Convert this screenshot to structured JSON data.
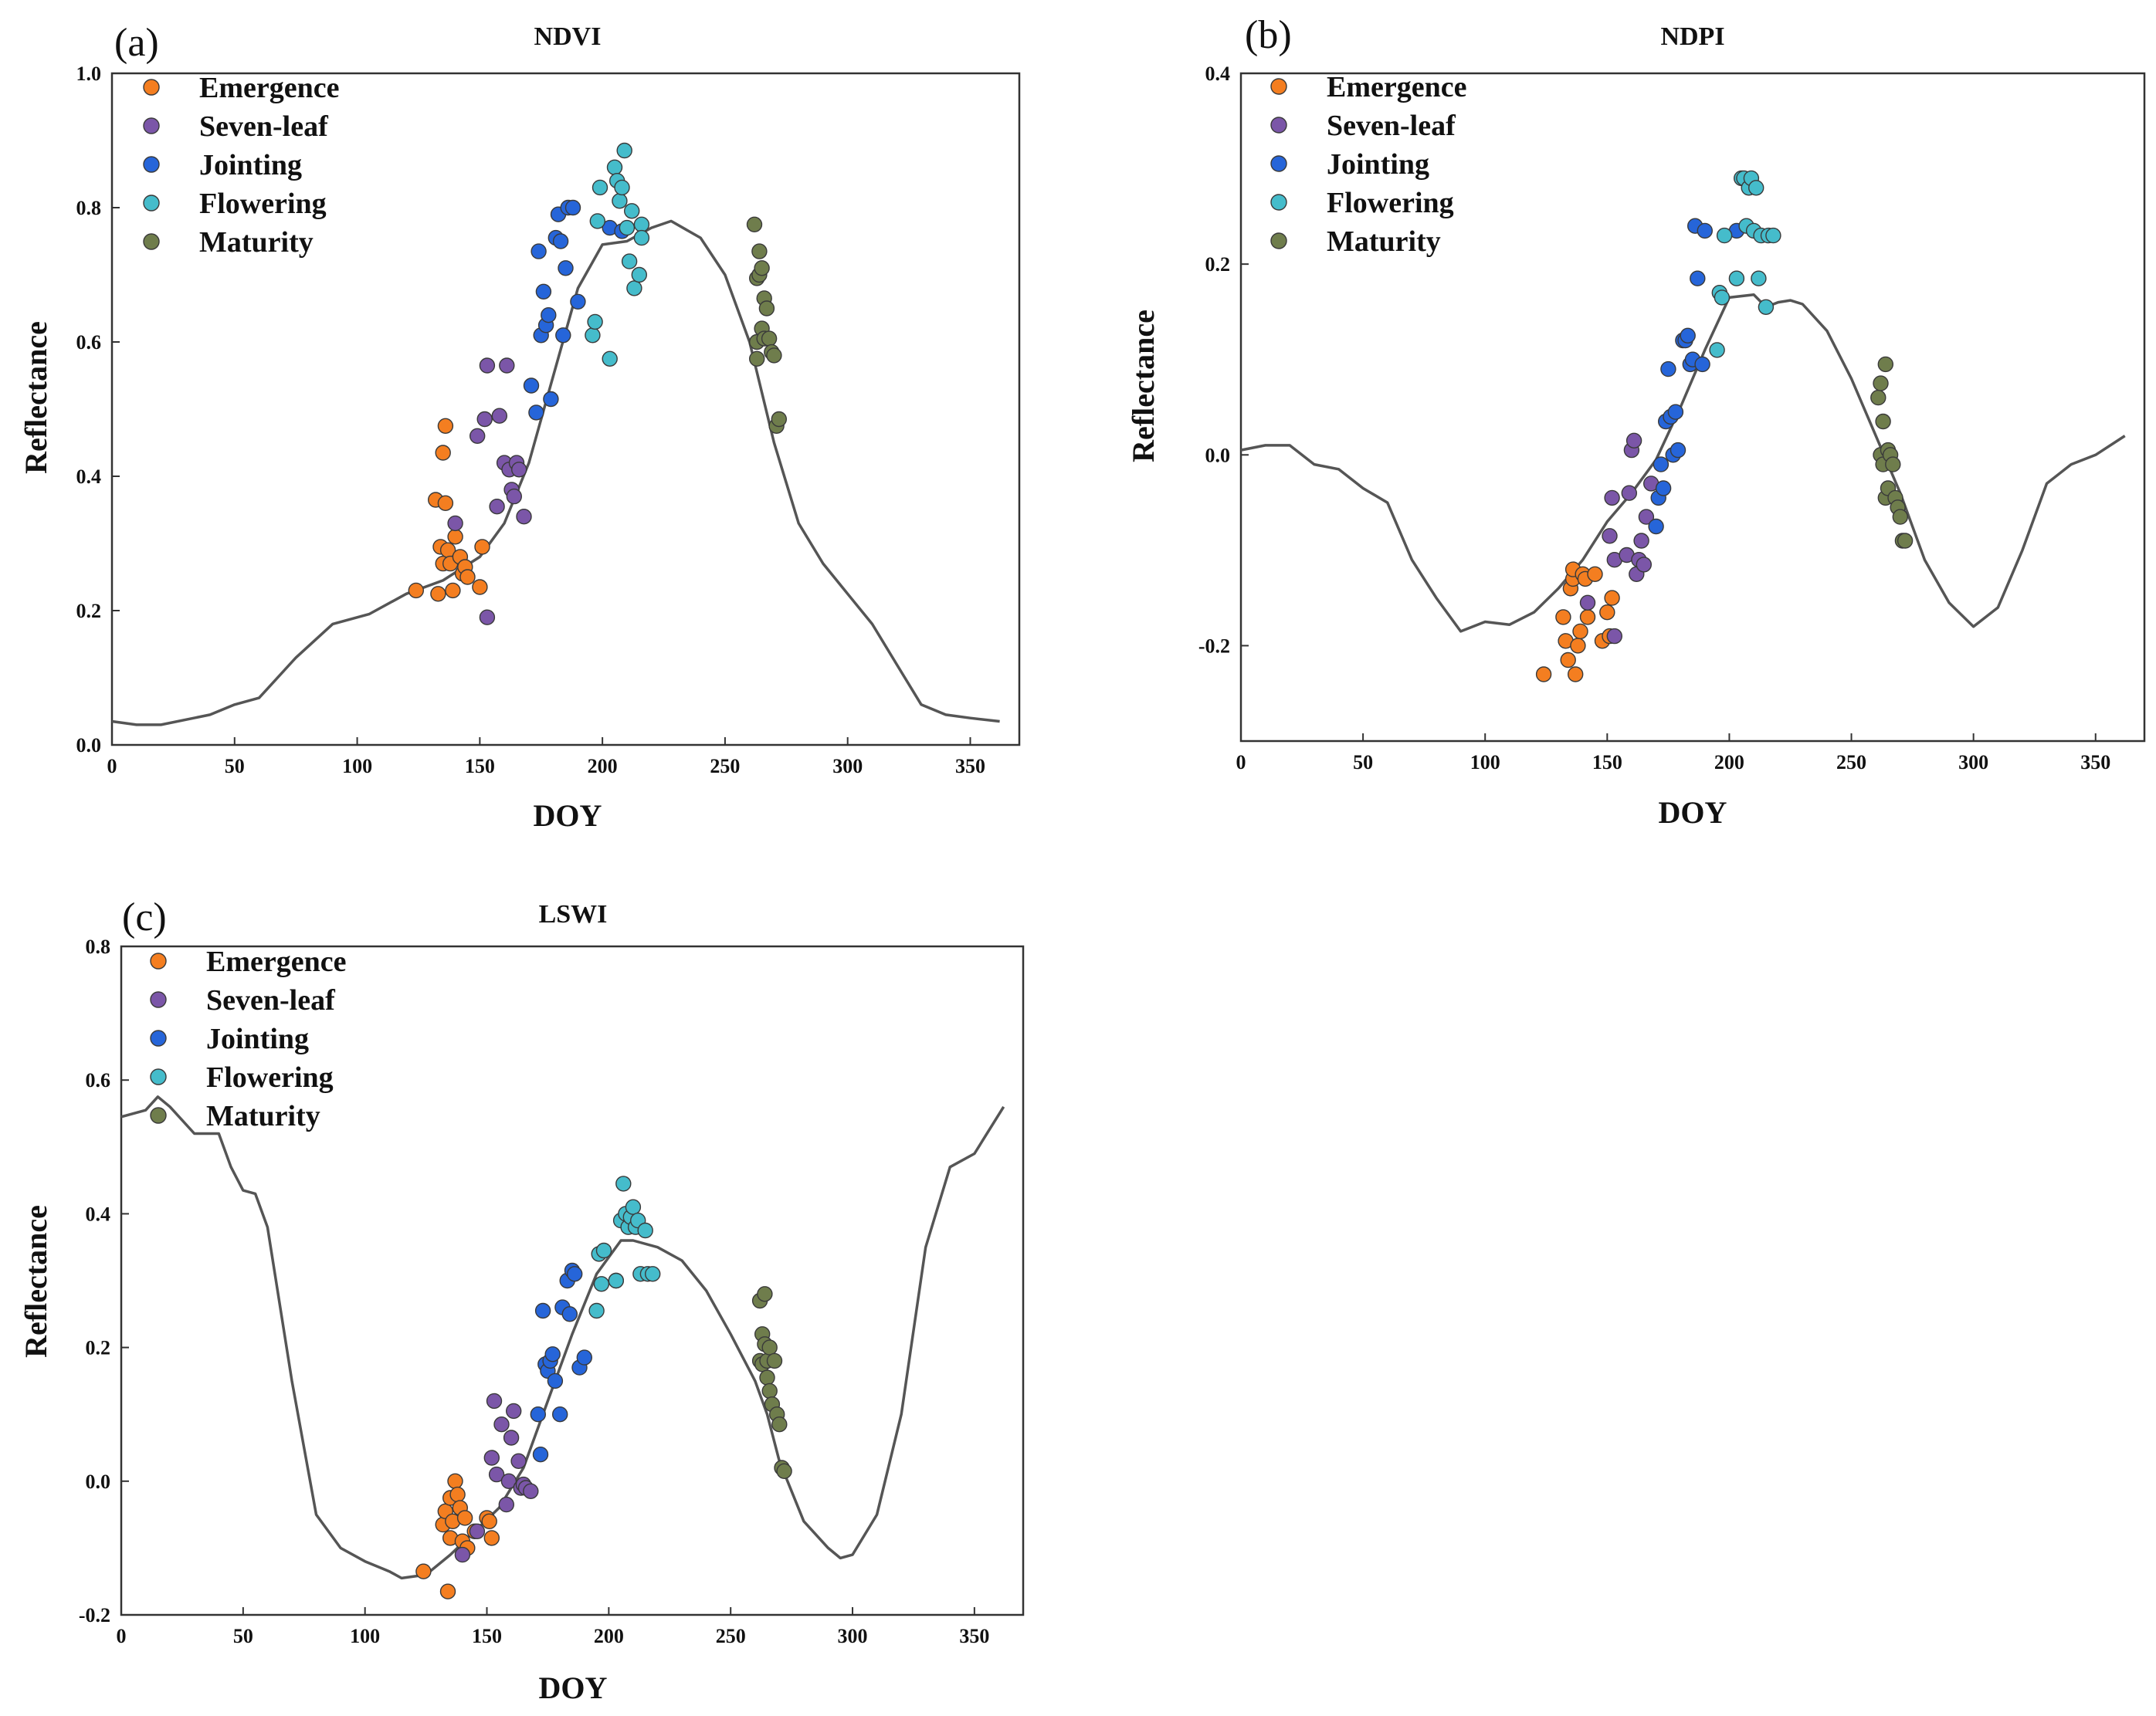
{
  "legend_labels": [
    "Emergence",
    "Seven-leaf",
    "Jointing",
    "Flowering",
    "Maturity"
  ],
  "colors": {
    "Emergence": "#f47e20",
    "Seven-leaf": "#7b56a8",
    "Jointing": "#2665d9",
    "Flowering": "#45bccb",
    "Maturity": "#6f7d4c",
    "curve": "#555555",
    "axis": "#333333"
  },
  "chart_data": [
    {
      "type": "scatter",
      "panel": "(a)",
      "title": "NDVI",
      "xlabel": "DOY",
      "ylabel": "Reflectance",
      "xlim": [
        0,
        370
      ],
      "ylim": [
        0.0,
        1.0
      ],
      "xticks": [
        0,
        50,
        100,
        150,
        200,
        250,
        300,
        350
      ],
      "yticks": [
        0.0,
        0.2,
        0.4,
        0.6,
        0.8,
        1.0
      ],
      "ytick_labels": [
        "0.0",
        "0.2",
        "0.4",
        "0.6",
        "0.8",
        "1.0"
      ],
      "legend": "top-left",
      "curve": {
        "x": [
          0,
          10,
          20,
          40,
          50,
          60,
          75,
          90,
          105,
          120,
          135,
          150,
          160,
          170,
          180,
          190,
          200,
          210,
          220,
          228,
          240,
          250,
          260,
          270,
          280,
          290,
          300,
          310,
          320,
          330,
          340,
          350,
          362
        ],
        "y": [
          0.035,
          0.03,
          0.03,
          0.045,
          0.06,
          0.07,
          0.13,
          0.18,
          0.195,
          0.225,
          0.245,
          0.28,
          0.33,
          0.42,
          0.55,
          0.68,
          0.745,
          0.75,
          0.77,
          0.78,
          0.755,
          0.7,
          0.6,
          0.45,
          0.33,
          0.27,
          0.225,
          0.18,
          0.12,
          0.06,
          0.045,
          0.04,
          0.035
        ]
      },
      "series": [
        {
          "name": "Emergence",
          "x": [
            124,
            132,
            133,
            134,
            135,
            135,
            136,
            136,
            137,
            138,
            139,
            140,
            142,
            143,
            144,
            145,
            150,
            151
          ],
          "y": [
            0.23,
            0.365,
            0.225,
            0.295,
            0.435,
            0.27,
            0.475,
            0.36,
            0.29,
            0.27,
            0.23,
            0.31,
            0.28,
            0.255,
            0.265,
            0.25,
            0.235,
            0.295
          ]
        },
        {
          "name": "Seven-leaf",
          "x": [
            140,
            149,
            152,
            153,
            153,
            157,
            158,
            160,
            161,
            162,
            163,
            164,
            165,
            166,
            168
          ],
          "y": [
            0.33,
            0.46,
            0.485,
            0.565,
            0.19,
            0.355,
            0.49,
            0.42,
            0.565,
            0.41,
            0.38,
            0.37,
            0.42,
            0.41,
            0.34
          ]
        },
        {
          "name": "Jointing",
          "x": [
            171,
            173,
            174,
            175,
            176,
            177,
            178,
            179,
            181,
            182,
            183,
            184,
            185,
            186,
            188,
            190,
            203,
            208
          ],
          "y": [
            0.535,
            0.495,
            0.735,
            0.61,
            0.675,
            0.625,
            0.64,
            0.515,
            0.755,
            0.79,
            0.75,
            0.61,
            0.71,
            0.8,
            0.8,
            0.66,
            0.77,
            0.765
          ]
        },
        {
          "name": "Flowering",
          "x": [
            196,
            197,
            198,
            199,
            203,
            205,
            206,
            207,
            208,
            209,
            210,
            211,
            212,
            213,
            215,
            216,
            216
          ],
          "y": [
            0.61,
            0.63,
            0.78,
            0.83,
            0.575,
            0.86,
            0.84,
            0.81,
            0.83,
            0.885,
            0.77,
            0.72,
            0.795,
            0.68,
            0.7,
            0.775,
            0.755
          ]
        },
        {
          "name": "Maturity",
          "x": [
            262,
            263,
            263,
            263,
            264,
            264,
            265,
            265,
            266,
            266,
            267,
            268,
            269,
            270,
            271,
            272
          ],
          "y": [
            0.775,
            0.695,
            0.6,
            0.575,
            0.735,
            0.7,
            0.71,
            0.62,
            0.665,
            0.605,
            0.65,
            0.605,
            0.585,
            0.58,
            0.475,
            0.485
          ]
        }
      ]
    },
    {
      "type": "scatter",
      "panel": "(b)",
      "title": "NDPI",
      "xlabel": "DOY",
      "ylabel": "Reflectance",
      "xlim": [
        0,
        370
      ],
      "ylim": [
        -0.3,
        0.4
      ],
      "xticks": [
        0,
        50,
        100,
        150,
        200,
        250,
        300,
        350
      ],
      "yticks": [
        -0.2,
        0.0,
        0.2,
        0.4
      ],
      "ytick_labels": [
        "-0.2",
        "0.0",
        "0.2",
        "0.4"
      ],
      "legend": "top-left",
      "curve": {
        "x": [
          0,
          10,
          20,
          30,
          40,
          50,
          60,
          70,
          80,
          90,
          100,
          110,
          120,
          130,
          140,
          150,
          160,
          170,
          180,
          190,
          200,
          210,
          215,
          220,
          225,
          230,
          240,
          250,
          260,
          270,
          280,
          290,
          300,
          310,
          320,
          330,
          340,
          350,
          362
        ],
        "y": [
          0.005,
          0.01,
          0.01,
          -0.01,
          -0.015,
          -0.035,
          -0.05,
          -0.11,
          -0.15,
          -0.185,
          -0.175,
          -0.178,
          -0.165,
          -0.14,
          -0.11,
          -0.07,
          -0.04,
          -0.005,
          0.05,
          0.11,
          0.165,
          0.168,
          0.155,
          0.16,
          0.162,
          0.158,
          0.13,
          0.08,
          0.02,
          -0.04,
          -0.11,
          -0.155,
          -0.18,
          -0.16,
          -0.1,
          -0.03,
          -0.01,
          0.0,
          0.02
        ]
      },
      "series": [
        {
          "name": "Emergence",
          "x": [
            124,
            132,
            133,
            134,
            135,
            136,
            136,
            137,
            138,
            139,
            140,
            141,
            142,
            145,
            148,
            150,
            151,
            152
          ],
          "y": [
            -0.23,
            -0.17,
            -0.195,
            -0.215,
            -0.14,
            -0.13,
            -0.12,
            -0.23,
            -0.2,
            -0.185,
            -0.125,
            -0.13,
            -0.17,
            -0.125,
            -0.195,
            -0.165,
            -0.19,
            -0.15
          ]
        },
        {
          "name": "Seven-leaf",
          "x": [
            142,
            151,
            152,
            153,
            153,
            158,
            159,
            160,
            161,
            162,
            163,
            164,
            165,
            166,
            168
          ],
          "y": [
            -0.155,
            -0.085,
            -0.045,
            -0.11,
            -0.19,
            -0.105,
            -0.04,
            0.005,
            0.015,
            -0.125,
            -0.11,
            -0.09,
            -0.115,
            -0.065,
            -0.03
          ]
        },
        {
          "name": "Jointing",
          "x": [
            170,
            171,
            172,
            173,
            174,
            175,
            176,
            177,
            178,
            179,
            181,
            182,
            183,
            184,
            185,
            186,
            187,
            189,
            190,
            203
          ],
          "y": [
            -0.075,
            -0.045,
            -0.01,
            -0.035,
            0.035,
            0.09,
            0.04,
            0.0,
            0.045,
            0.005,
            0.12,
            0.12,
            0.125,
            0.095,
            0.1,
            0.24,
            0.185,
            0.095,
            0.235,
            0.235
          ]
        },
        {
          "name": "Flowering",
          "x": [
            195,
            196,
            197,
            198,
            203,
            205,
            206,
            207,
            208,
            209,
            210,
            211,
            212,
            213,
            215,
            216,
            218
          ],
          "y": [
            0.11,
            0.17,
            0.165,
            0.23,
            0.185,
            0.29,
            0.29,
            0.24,
            0.28,
            0.29,
            0.235,
            0.28,
            0.185,
            0.23,
            0.155,
            0.23,
            0.23
          ]
        },
        {
          "name": "Maturity",
          "x": [
            261,
            262,
            262,
            263,
            263,
            264,
            264,
            265,
            265,
            266,
            267,
            268,
            269,
            270,
            271,
            272
          ],
          "y": [
            0.06,
            0.075,
            0.0,
            0.035,
            -0.01,
            0.095,
            -0.045,
            0.005,
            -0.035,
            0.0,
            -0.01,
            -0.045,
            -0.055,
            -0.065,
            -0.09,
            -0.09
          ]
        }
      ]
    },
    {
      "type": "scatter",
      "panel": "(c)",
      "title": "LSWI",
      "xlabel": "DOY",
      "ylabel": "Reflectance",
      "xlim": [
        0,
        370
      ],
      "ylim": [
        -0.2,
        0.8
      ],
      "xticks": [
        0,
        50,
        100,
        150,
        200,
        250,
        300,
        350
      ],
      "yticks": [
        -0.2,
        0.0,
        0.2,
        0.4,
        0.6,
        0.8
      ],
      "ytick_labels": [
        "-0.2",
        "0.0",
        "0.2",
        "0.4",
        "0.6",
        "0.8"
      ],
      "legend": "top-left",
      "curve": {
        "x": [
          0,
          10,
          15,
          20,
          30,
          40,
          45,
          50,
          55,
          60,
          70,
          80,
          90,
          100,
          110,
          115,
          125,
          135,
          145,
          155,
          165,
          175,
          185,
          195,
          205,
          210,
          220,
          230,
          240,
          250,
          260,
          265,
          270,
          280,
          290,
          295,
          300,
          310,
          320,
          330,
          340,
          350,
          362
        ],
        "y": [
          0.545,
          0.555,
          0.575,
          0.56,
          0.52,
          0.52,
          0.47,
          0.435,
          0.43,
          0.38,
          0.15,
          -0.05,
          -0.1,
          -0.12,
          -0.135,
          -0.145,
          -0.14,
          -0.11,
          -0.075,
          -0.04,
          0.02,
          0.12,
          0.22,
          0.31,
          0.36,
          0.36,
          0.35,
          0.33,
          0.285,
          0.22,
          0.15,
          0.1,
          0.03,
          -0.06,
          -0.1,
          -0.115,
          -0.11,
          -0.05,
          0.1,
          0.35,
          0.47,
          0.49,
          0.56
        ]
      },
      "series": [
        {
          "name": "Emergence",
          "x": [
            124,
            132,
            133,
            134,
            135,
            135,
            136,
            137,
            138,
            139,
            140,
            141,
            142,
            145,
            150,
            151,
            152
          ],
          "y": [
            -0.135,
            -0.065,
            -0.045,
            -0.165,
            -0.025,
            -0.085,
            -0.06,
            0.0,
            -0.02,
            -0.04,
            -0.09,
            -0.055,
            -0.1,
            -0.075,
            -0.055,
            -0.06,
            -0.085
          ]
        },
        {
          "name": "Seven-leaf",
          "x": [
            140,
            146,
            152,
            153,
            154,
            156,
            158,
            159,
            160,
            161,
            163,
            164,
            165,
            166,
            168
          ],
          "y": [
            -0.11,
            -0.075,
            0.035,
            0.12,
            0.01,
            0.085,
            -0.035,
            0.0,
            0.065,
            0.105,
            0.03,
            -0.01,
            -0.005,
            -0.01,
            -0.015
          ]
        },
        {
          "name": "Jointing",
          "x": [
            171,
            172,
            173,
            174,
            175,
            176,
            177,
            178,
            180,
            181,
            183,
            184,
            185,
            186,
            188,
            190,
            203
          ],
          "y": [
            0.1,
            0.04,
            0.255,
            0.175,
            0.165,
            0.18,
            0.19,
            0.15,
            0.1,
            0.26,
            0.3,
            0.25,
            0.315,
            0.31,
            0.17,
            0.185,
            0.3
          ]
        },
        {
          "name": "Flowering",
          "x": [
            195,
            196,
            197,
            198,
            203,
            205,
            206,
            207,
            208,
            209,
            210,
            211,
            212,
            213,
            215,
            216,
            218
          ],
          "y": [
            0.255,
            0.34,
            0.295,
            0.345,
            0.3,
            0.39,
            0.445,
            0.4,
            0.38,
            0.395,
            0.41,
            0.38,
            0.39,
            0.31,
            0.375,
            0.31,
            0.31
          ]
        },
        {
          "name": "Maturity",
          "x": [
            262,
            262,
            263,
            263,
            264,
            264,
            265,
            265,
            266,
            266,
            267,
            268,
            269,
            270,
            271,
            272
          ],
          "y": [
            0.27,
            0.18,
            0.22,
            0.175,
            0.28,
            0.205,
            0.155,
            0.18,
            0.135,
            0.2,
            0.115,
            0.18,
            0.1,
            0.085,
            0.02,
            0.015
          ]
        }
      ]
    }
  ]
}
